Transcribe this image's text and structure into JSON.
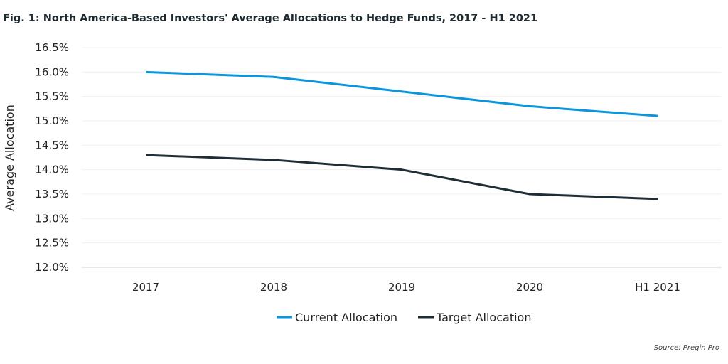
{
  "chart_data": {
    "type": "line",
    "title": "Fig. 1: North America-Based Investors' Average Allocations to Hedge Funds, 2017 - H1 2021",
    "xlabel": "",
    "ylabel": "Average Allocation",
    "categories": [
      "2017",
      "2018",
      "2019",
      "2020",
      "H1 2021"
    ],
    "ylim": [
      12.0,
      16.5
    ],
    "yticks": [
      "12.0%",
      "12.5%",
      "13.0%",
      "13.5%",
      "14.0%",
      "14.5%",
      "15.0%",
      "15.5%",
      "16.0%",
      "16.5%"
    ],
    "grid": true,
    "legend": "bottom-center",
    "series": [
      {
        "name": "Current Allocation",
        "color": "#0a96dc",
        "values": [
          16.0,
          15.9,
          15.6,
          15.3,
          15.1
        ]
      },
      {
        "name": "Target Allocation",
        "color": "#1f2d36",
        "values": [
          14.3,
          14.2,
          14.0,
          13.5,
          13.4
        ]
      }
    ],
    "source": "Source: Preqin Pro"
  }
}
